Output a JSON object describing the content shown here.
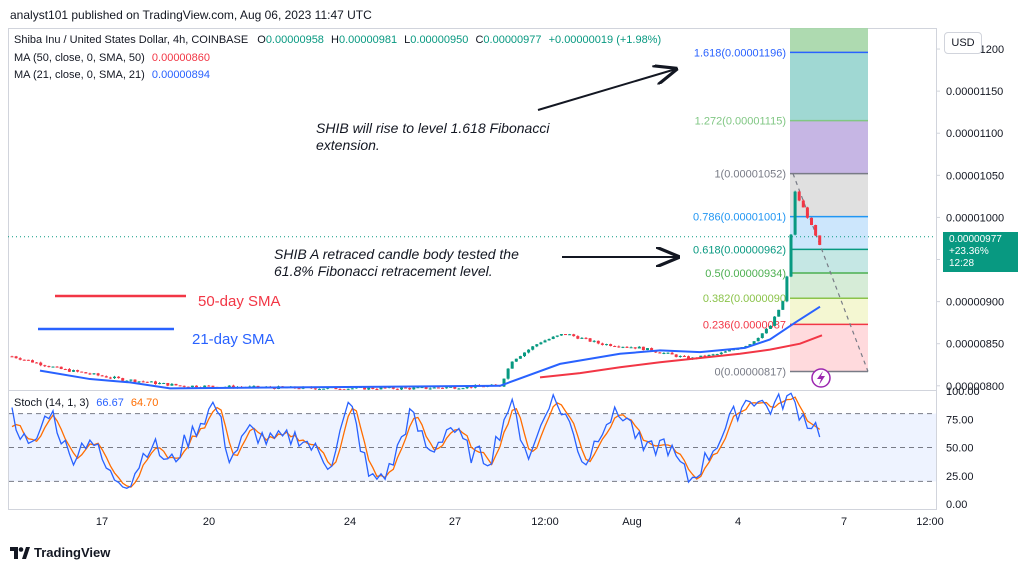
{
  "header": {
    "publisher_line": "analyst101 published on TradingView.com, Aug 06, 2023 11:47 UTC"
  },
  "legend": {
    "symbol": "Shiba Inu / United States Dollar, 4h, COINBASE",
    "o_label": "O",
    "o_value": "0.00000958",
    "h_label": "H",
    "h_value": "0.00000981",
    "l_label": "L",
    "l_value": "0.00000950",
    "c_label": "C",
    "c_value": "0.00000977",
    "change": "+0.00000019 (+1.98%)",
    "ma50_label": "MA (50, close, 0, SMA, 50)",
    "ma50_value": "0.00000860",
    "ma21_label": "MA (21, close, 0, SMA, 21)",
    "ma21_value": "0.00000894"
  },
  "annotations": {
    "rise_line1": "SHIB will rise to level 1.618 Fibonacci",
    "rise_line2": "extension.",
    "retrace_line1": "SHIB A retraced candle body tested the",
    "retrace_line2": "61.8% Fibonacci retracement level.",
    "sma50_label": "50-day SMA",
    "sma21_label": "21-day SMA"
  },
  "price_scale": {
    "currency_button": "USD",
    "current_price": "0.00000977",
    "current_change": "+23.36%",
    "countdown": "12:28"
  },
  "stoch": {
    "label": "Stoch (14, 1, 3)",
    "k_value": "66.67",
    "d_value": "64.70"
  },
  "footer": {
    "brand": "TradingView"
  },
  "colors": {
    "up": "#089981",
    "down": "#f23645",
    "ma50": "#f23645",
    "ma21": "#2962ff",
    "stoch_k": "#2962ff",
    "stoch_d": "#ff6d00"
  },
  "chart_data": [
    {
      "type": "candlestick",
      "title": "Shiba Inu / United States Dollar, 4h, COINBASE",
      "ylim": [
        7.95e-06,
        1.225e-05
      ],
      "y_ticks": [
        "0.00001200",
        "0.00001150",
        "0.00001100",
        "0.00001050",
        "0.00001000",
        "0.00000950",
        "0.00000900",
        "0.00000850",
        "0.00000800"
      ],
      "x_ticks": [
        "17",
        "20",
        "24",
        "27",
        "12:00",
        "Aug",
        "4",
        "7",
        "12:00"
      ],
      "fibonacci": [
        {
          "label": "1.618(0.00001196)",
          "value": 1.196e-05,
          "color": "#2962ff"
        },
        {
          "label": "1.272(0.00001115)",
          "value": 1.115e-05,
          "color": "#81c784"
        },
        {
          "label": "1(0.00001052)",
          "value": 1.052e-05,
          "color": "#787b86"
        },
        {
          "label": "0.786(0.00001001)",
          "value": 1.001e-05,
          "color": "#2196f3"
        },
        {
          "label": "0.618(0.00000962)",
          "value": 9.62e-06,
          "color": "#089981"
        },
        {
          "label": "0.5(0.00000934)",
          "value": 9.34e-06,
          "color": "#4caf50"
        },
        {
          "label": "0.382(0.0000090",
          "value": 9.04e-06,
          "color": "#8bc34a"
        },
        {
          "label": "0.236(0.0000087",
          "value": 8.73e-06,
          "color": "#f23645"
        },
        {
          "label": "0(0.00000817)",
          "value": 8.17e-06,
          "color": "#787b86"
        }
      ],
      "series": [
        {
          "name": "MA (50, close, 0, SMA, 50)",
          "values": [
            8.1e-06,
            8.15e-06,
            8.22e-06,
            8.28e-06,
            8.33e-06,
            8.38e-06,
            8.43e-06,
            8.5e-06,
            8.6e-06
          ]
        },
        {
          "name": "MA (21, close, 0, SMA, 21)",
          "values": [
            8.26e-06,
            8.38e-06,
            8.42e-06,
            8.4e-06,
            8.38e-06,
            8.36e-06,
            8.41e-06,
            8.5e-06,
            8.68e-06,
            8.94e-06
          ]
        }
      ]
    },
    {
      "type": "line",
      "title": "Stoch (14, 1, 3)",
      "ylim": [
        0,
        100
      ],
      "y_ticks": [
        "100.00",
        "75.00",
        "50.00",
        "25.00",
        "0.00"
      ],
      "series": [
        {
          "name": "K",
          "last": 66.67
        },
        {
          "name": "D",
          "last": 64.7
        }
      ]
    }
  ]
}
